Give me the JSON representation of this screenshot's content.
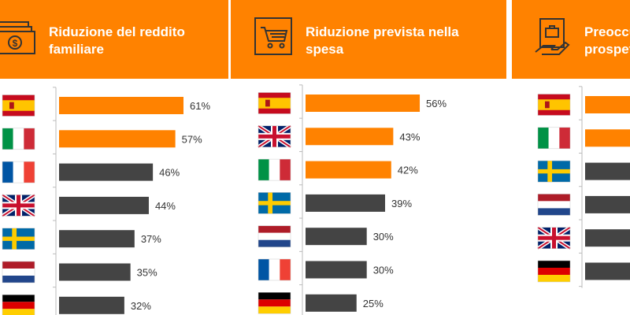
{
  "colors": {
    "accent": "#ff8200",
    "bar_dark": "#444444",
    "header_bg": "#ff8200"
  },
  "panels": [
    {
      "title": "Riduzione del reddito familiare",
      "icon": "money-banknote-icon"
    },
    {
      "title": "Riduzione prevista nella spesa",
      "icon": "shopping-cart-icon"
    },
    {
      "title": "Preoccupazione per le prospettive",
      "icon": "hand-briefcase-icon"
    }
  ],
  "chart_data": [
    {
      "type": "bar",
      "title": "Riduzione del reddito familiare",
      "categories": [
        "spain-flag",
        "italy-flag",
        "france-flag",
        "uk-flag",
        "sweden-flag",
        "netherlands-flag",
        "germany-flag"
      ],
      "values": [
        61,
        57,
        46,
        44,
        37,
        35,
        32
      ],
      "value_labels": [
        "61%",
        "57%",
        "46%",
        "44%",
        "37%",
        "35%",
        "32%"
      ],
      "highlight": [
        true,
        true,
        false,
        false,
        false,
        false,
        false
      ],
      "unit": "%"
    },
    {
      "type": "bar",
      "title": "Riduzione prevista nella spesa",
      "categories": [
        "spain-flag",
        "uk-flag",
        "italy-flag",
        "sweden-flag",
        "netherlands-flag",
        "france-flag",
        "germany-flag"
      ],
      "values": [
        56,
        43,
        42,
        39,
        30,
        30,
        25
      ],
      "value_labels": [
        "56%",
        "43%",
        "42%",
        "39%",
        "30%",
        "30%",
        "25%"
      ],
      "highlight": [
        true,
        true,
        true,
        false,
        false,
        false,
        false
      ],
      "unit": "%"
    },
    {
      "type": "bar",
      "title": "Preoccupazione per le prospettive",
      "categories": [
        "spain-flag",
        "italy-flag",
        "sweden-flag",
        "netherlands-flag",
        "uk-flag",
        "germany-flag"
      ],
      "values": [
        null,
        null,
        null,
        null,
        null,
        null
      ],
      "value_labels": [],
      "highlight": [
        true,
        true,
        false,
        false,
        false,
        false
      ],
      "unit": "%"
    }
  ]
}
